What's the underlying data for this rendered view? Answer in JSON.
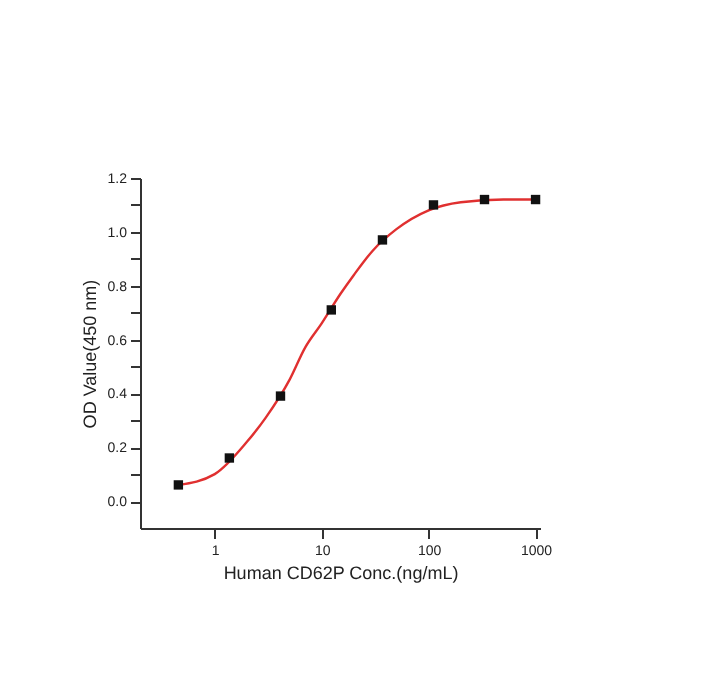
{
  "chart_data": {
    "type": "line",
    "xlabel": "Human  CD62P Conc.(ng/mL)",
    "ylabel": "OD Value(450 nm)",
    "log": "x",
    "xlim": [
      0.2,
      1100
    ],
    "xticks": [
      1,
      10,
      100,
      1000
    ],
    "ylim": [
      -0.1,
      1.2
    ],
    "yticks": [
      {
        "value": 0.0,
        "label": "0.0"
      },
      {
        "value": 0.1,
        "label": null
      },
      {
        "value": 0.2,
        "label": "0.2"
      },
      {
        "value": 0.3,
        "label": null
      },
      {
        "value": 0.4,
        "label": "0.4"
      },
      {
        "value": 0.5,
        "label": null
      },
      {
        "value": 0.6,
        "label": "0.6"
      },
      {
        "value": 0.7,
        "label": null
      },
      {
        "value": 0.8,
        "label": "0.8"
      },
      {
        "value": 0.9,
        "label": null
      },
      {
        "value": 1.0,
        "label": "1.0"
      },
      {
        "value": 1.1,
        "label": null
      },
      {
        "value": 1.2,
        "label": "1.2"
      }
    ],
    "series": [
      {
        "color": "#e03030",
        "line_style": "solid",
        "x": [
          0.457,
          1,
          2,
          3,
          5,
          7,
          10,
          15,
          20,
          30,
          50,
          100,
          200,
          500,
          1000
        ],
        "values": [
          0.06,
          0.1,
          0.22,
          0.31,
          0.45,
          0.57,
          0.66,
          0.77,
          0.84,
          0.93,
          1.01,
          1.08,
          1.11,
          1.12,
          1.12
        ]
      },
      {
        "type": "scatter",
        "color": "#111111",
        "marker": "square",
        "x": [
          0.457,
          1.37,
          4.12,
          12.3,
          37,
          111,
          333,
          1000
        ],
        "values": [
          0.06,
          0.16,
          0.39,
          0.71,
          0.97,
          1.1,
          1.12,
          1.12
        ]
      }
    ]
  }
}
